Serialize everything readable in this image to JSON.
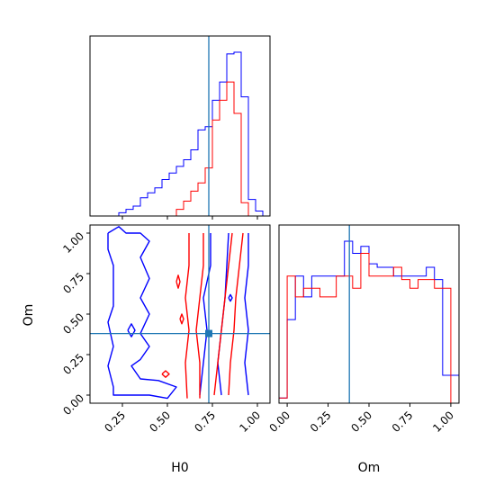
{
  "colors": {
    "blue": "#0000ff",
    "red": "#ff0000",
    "truth": "#1f77b4",
    "axis": "#000000"
  },
  "chart_data": [
    {
      "type": "histogram",
      "panel": "H0 marginal",
      "xlabel": "",
      "ylabel": "",
      "xlim": [
        0.07,
        1.07
      ],
      "bin_edges": [
        0.07,
        0.11,
        0.15,
        0.19,
        0.23,
        0.27,
        0.31,
        0.35,
        0.39,
        0.43,
        0.47,
        0.51,
        0.55,
        0.59,
        0.63,
        0.67,
        0.71,
        0.75,
        0.79,
        0.83,
        0.87,
        0.91,
        0.95,
        0.99,
        1.03,
        1.07
      ],
      "series": [
        {
          "color": "blue",
          "values": [
            0,
            0,
            0,
            0,
            0.02,
            0.04,
            0.06,
            0.11,
            0.14,
            0.17,
            0.22,
            0.26,
            0.3,
            0.34,
            0.4,
            0.52,
            0.54,
            0.7,
            0.81,
            0.98,
            0.99,
            0.72,
            0.1,
            0.03,
            0
          ]
        },
        {
          "color": "red",
          "values": [
            0,
            0,
            0,
            0,
            0,
            0,
            0,
            0,
            0,
            0,
            0,
            0,
            0.04,
            0.09,
            0.15,
            0.2,
            0.29,
            0.58,
            0.7,
            0.81,
            0.62,
            0.08,
            0,
            0,
            0
          ]
        }
      ],
      "truth_x": 0.73
    },
    {
      "type": "contour",
      "panel": "H0 vs Om",
      "xlabel": "H0",
      "ylabel": "Om",
      "xlim": [
        0.07,
        1.07
      ],
      "ylim": [
        -0.05,
        1.05
      ],
      "xticks": [
        "0.25",
        "0.50",
        "0.75",
        "1.00"
      ],
      "yticks": [
        "0.00",
        "0.25",
        "0.50",
        "0.75",
        "1.00"
      ],
      "truth": {
        "x": 0.73,
        "y": 0.38
      },
      "series": [
        {
          "color": "blue",
          "contours": [
            [
              [
                0.17,
                1.0
              ],
              [
                0.17,
                0.9
              ],
              [
                0.2,
                0.8
              ],
              [
                0.2,
                0.68
              ],
              [
                0.2,
                0.55
              ],
              [
                0.17,
                0.45
              ],
              [
                0.2,
                0.3
              ],
              [
                0.17,
                0.18
              ],
              [
                0.2,
                0.05
              ],
              [
                0.2,
                0.0
              ],
              [
                0.3,
                0.0
              ],
              [
                0.4,
                0.0
              ],
              [
                0.5,
                -0.02
              ],
              [
                0.55,
                0.05
              ],
              [
                0.45,
                0.09
              ],
              [
                0.35,
                0.1
              ],
              [
                0.3,
                0.18
              ],
              [
                0.35,
                0.22
              ],
              [
                0.4,
                0.3
              ],
              [
                0.35,
                0.38
              ],
              [
                0.4,
                0.5
              ],
              [
                0.35,
                0.6
              ],
              [
                0.4,
                0.72
              ],
              [
                0.35,
                0.85
              ],
              [
                0.4,
                0.95
              ],
              [
                0.35,
                1.0
              ],
              [
                0.27,
                1.0
              ],
              [
                0.23,
                1.04
              ],
              [
                0.17,
                1.0
              ]
            ],
            [
              [
                0.68,
                0.0
              ],
              [
                0.7,
                0.2
              ],
              [
                0.72,
                0.4
              ],
              [
                0.7,
                0.6
              ],
              [
                0.74,
                0.8
              ],
              [
                0.74,
                1.0
              ]
            ],
            [
              [
                0.8,
                0.0
              ],
              [
                0.78,
                0.2
              ],
              [
                0.8,
                0.4
              ],
              [
                0.82,
                0.6
              ],
              [
                0.83,
                0.8
              ],
              [
                0.84,
                1.0
              ]
            ],
            [
              [
                0.95,
                0.0
              ],
              [
                0.93,
                0.2
              ],
              [
                0.95,
                0.4
              ],
              [
                0.93,
                0.6
              ],
              [
                0.95,
                0.8
              ],
              [
                0.95,
                1.0
              ]
            ],
            [
              [
                0.28,
                0.4
              ],
              [
                0.3,
                0.44
              ],
              [
                0.32,
                0.4
              ],
              [
                0.3,
                0.36
              ],
              [
                0.28,
                0.4
              ]
            ],
            [
              [
                0.84,
                0.6
              ],
              [
                0.85,
                0.62
              ],
              [
                0.86,
                0.6
              ],
              [
                0.85,
                0.58
              ],
              [
                0.84,
                0.6
              ]
            ]
          ]
        },
        {
          "color": "red",
          "contours": [
            [
              [
                0.61,
                -0.02
              ],
              [
                0.6,
                0.2
              ],
              [
                0.62,
                0.4
              ],
              [
                0.6,
                0.6
              ],
              [
                0.62,
                0.8
              ],
              [
                0.62,
                1.0
              ]
            ],
            [
              [
                0.68,
                -0.02
              ],
              [
                0.68,
                0.2
              ],
              [
                0.66,
                0.4
              ],
              [
                0.68,
                0.6
              ],
              [
                0.7,
                0.8
              ],
              [
                0.7,
                1.0
              ]
            ],
            [
              [
                0.76,
                0.0
              ],
              [
                0.78,
                0.2
              ],
              [
                0.8,
                0.4
              ],
              [
                0.82,
                0.6
              ],
              [
                0.84,
                0.8
              ],
              [
                0.86,
                1.0
              ]
            ],
            [
              [
                0.84,
                0.0
              ],
              [
                0.85,
                0.2
              ],
              [
                0.87,
                0.4
              ],
              [
                0.88,
                0.6
              ],
              [
                0.9,
                0.8
              ],
              [
                0.92,
                1.0
              ]
            ],
            [
              [
                0.55,
                0.7
              ],
              [
                0.56,
                0.74
              ],
              [
                0.57,
                0.7
              ],
              [
                0.56,
                0.66
              ],
              [
                0.55,
                0.7
              ]
            ],
            [
              [
                0.57,
                0.47
              ],
              [
                0.58,
                0.5
              ],
              [
                0.59,
                0.47
              ],
              [
                0.58,
                0.44
              ],
              [
                0.57,
                0.47
              ]
            ],
            [
              [
                0.47,
                0.13
              ],
              [
                0.49,
                0.15
              ],
              [
                0.51,
                0.13
              ],
              [
                0.49,
                0.11
              ],
              [
                0.47,
                0.13
              ]
            ]
          ]
        }
      ]
    },
    {
      "type": "histogram",
      "panel": "Om marginal",
      "xlabel": "Om",
      "ylabel": "",
      "xlim": [
        -0.05,
        1.05
      ],
      "xticks": [
        "0.00",
        "0.25",
        "0.50",
        "0.75",
        "1.00"
      ],
      "bin_edges": [
        -0.05,
        0.0,
        0.05,
        0.1,
        0.15,
        0.2,
        0.25,
        0.3,
        0.35,
        0.4,
        0.45,
        0.5,
        0.55,
        0.6,
        0.65,
        0.7,
        0.75,
        0.8,
        0.85,
        0.9,
        0.95,
        1.0,
        1.05
      ],
      "series": [
        {
          "color": "blue",
          "values": [
            0.03,
            0.48,
            0.73,
            0.61,
            0.73,
            0.73,
            0.73,
            0.73,
            0.93,
            0.86,
            0.9,
            0.8,
            0.78,
            0.78,
            0.73,
            0.73,
            0.73,
            0.73,
            0.78,
            0.71,
            0.16,
            0.16
          ]
        },
        {
          "color": "red",
          "values": [
            0.03,
            0.73,
            0.61,
            0.66,
            0.66,
            0.61,
            0.61,
            0.73,
            0.73,
            0.66,
            0.86,
            0.73,
            0.73,
            0.73,
            0.78,
            0.71,
            0.66,
            0.71,
            0.71,
            0.66,
            0.66,
            0.0
          ]
        }
      ],
      "truth_x": 0.38
    }
  ]
}
